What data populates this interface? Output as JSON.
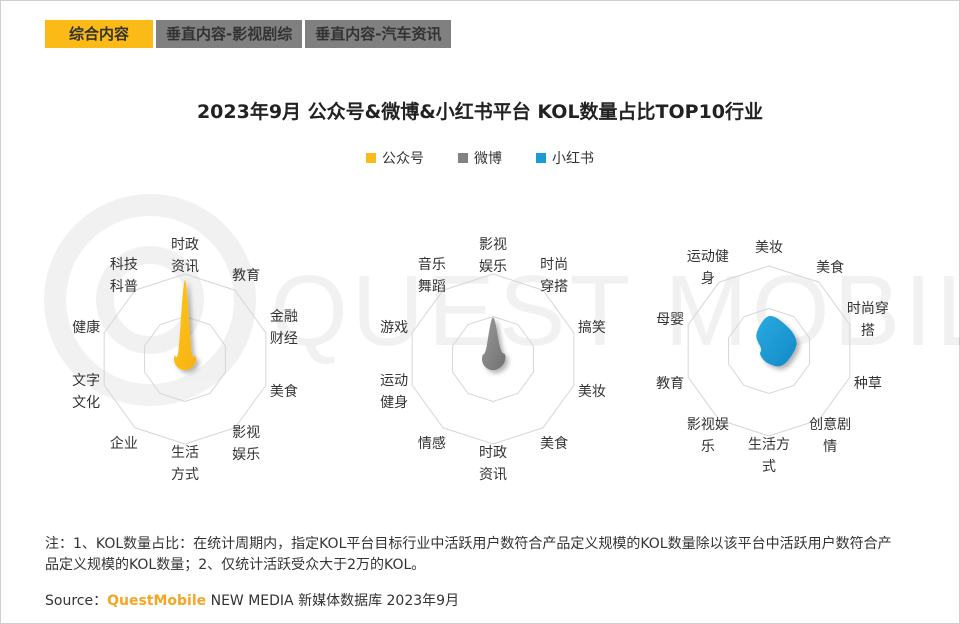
{
  "tabs": [
    "综合内容",
    "垂直内容-影视剧综",
    "垂直内容-汽车资讯"
  ],
  "watermark": "QUEST MOBILE",
  "colors": {
    "公众号": "#FBBA15",
    "微博": "#828282",
    "小红书": "#1A9AD6",
    "accent": "#F5A623"
  },
  "chart_data": {
    "title": "2023年9月 公众号&微博&小红书平台 KOL数量占比TOP10行业",
    "legend": [
      "公众号",
      "微博",
      "小红书"
    ],
    "legend_placement": "top",
    "charts": [
      {
        "type": "radar",
        "series": "公众号",
        "categories": [
          [
            "时政",
            "资讯"
          ],
          [
            "教育"
          ],
          [
            "金融",
            "财经"
          ],
          [
            "美食"
          ],
          [
            "影视",
            "娱乐"
          ],
          [
            "生活",
            "方式"
          ],
          [
            "企业"
          ],
          [
            "文字",
            "文化"
          ],
          [
            "健康"
          ],
          [
            "科技",
            "科普"
          ]
        ],
        "values": [
          0.93,
          0.13,
          0.13,
          0.13,
          0.13,
          0.13,
          0.13,
          0.13,
          0.13,
          0.13
        ]
      },
      {
        "type": "radar",
        "series": "微博",
        "categories": [
          [
            "影视",
            "娱乐"
          ],
          [
            "时尚",
            "穿搭"
          ],
          [
            "搞笑"
          ],
          [
            "美妆"
          ],
          [
            "美食"
          ],
          [
            "时政",
            "资讯"
          ],
          [
            "情感"
          ],
          [
            "运动",
            "健身"
          ],
          [
            "游戏"
          ],
          [
            "音乐",
            "舞蹈"
          ]
        ],
        "values": [
          0.49,
          0.15,
          0.15,
          0.14,
          0.13,
          0.13,
          0.13,
          0.13,
          0.13,
          0.14
        ]
      },
      {
        "type": "radar",
        "series": "小红书",
        "categories": [
          [
            "美妆"
          ],
          [
            "美食"
          ],
          [
            "时尚穿",
            "搭"
          ],
          [
            "种草"
          ],
          [
            "创意剧",
            "情"
          ],
          [
            "生活方",
            "式"
          ],
          [
            "影视娱",
            "乐"
          ],
          [
            "教育"
          ],
          [
            "母婴"
          ],
          [
            "运动健",
            "身"
          ]
        ],
        "values": [
          0.41,
          0.36,
          0.34,
          0.26,
          0.22,
          0.15,
          0.12,
          0.11,
          0.1,
          0.25
        ]
      }
    ]
  },
  "note": "注：1、KOL数量占比：在统计周期内，指定KOL平台目标行业中活跃用户数符合产品定义规模的KOL数量除以该平台中活跃用户数符合产品定义规模的KOL数量；2、仅统计活跃受众大于2万的KOL。",
  "source": {
    "label": "Source：",
    "brand": "QuestMobile",
    "text": " NEW MEDIA 新媒体数据库 2023年9月"
  }
}
